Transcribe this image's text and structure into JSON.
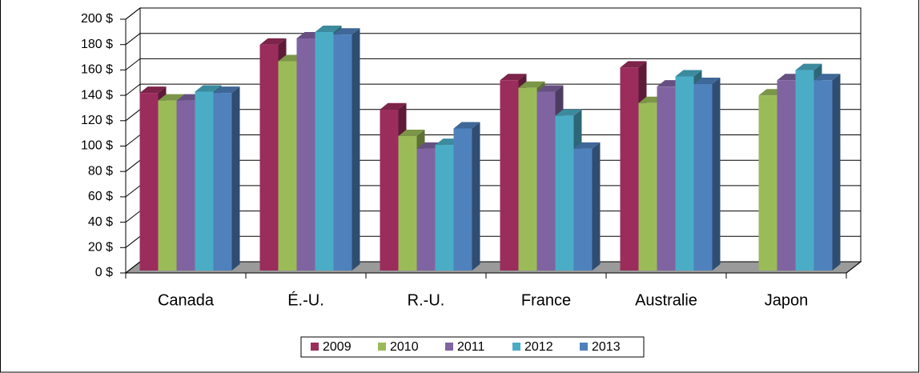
{
  "chart_data": {
    "type": "bar3d",
    "categories": [
      "Canada",
      "É.-U.",
      "R.-U.",
      "France",
      "Australie",
      "Japon"
    ],
    "series": [
      {
        "name": "2009",
        "color": "#9b2d5c",
        "values": [
          140,
          178,
          127,
          150,
          160,
          null
        ]
      },
      {
        "name": "2010",
        "color": "#9bbb59",
        "values": [
          134,
          165,
          106,
          144,
          132,
          138
        ]
      },
      {
        "name": "2011",
        "color": "#8064a2",
        "values": [
          134,
          183,
          96,
          141,
          145,
          150
        ]
      },
      {
        "name": "2012",
        "color": "#4bacc6",
        "values": [
          141,
          188,
          99,
          122,
          153,
          158
        ]
      },
      {
        "name": "2013",
        "color": "#4f81bd",
        "values": [
          140,
          186,
          112,
          96,
          147,
          150
        ]
      }
    ],
    "ylim": [
      0,
      200
    ],
    "yticks": [
      {
        "value": 0,
        "label": "0 $"
      },
      {
        "value": 20,
        "label": "20 $"
      },
      {
        "value": 40,
        "label": "40 $"
      },
      {
        "value": 60,
        "label": "60 $"
      },
      {
        "value": 80,
        "label": "80 $"
      },
      {
        "value": 100,
        "label": "100 $"
      },
      {
        "value": 120,
        "label": "120 $"
      },
      {
        "value": 140,
        "label": "140 $"
      },
      {
        "value": 160,
        "label": "160 $"
      },
      {
        "value": 180,
        "label": "180 $"
      },
      {
        "value": 200,
        "label": "200 $"
      }
    ],
    "grid": true,
    "legend": "bottom"
  }
}
